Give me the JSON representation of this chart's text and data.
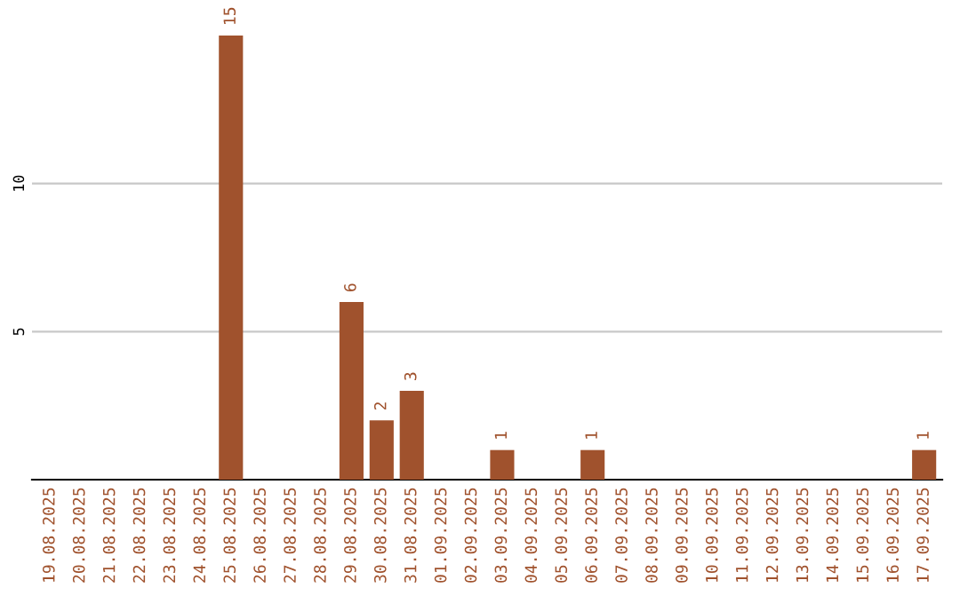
{
  "chart_data": {
    "type": "bar",
    "categories": [
      "19.08.2025",
      "20.08.2025",
      "21.08.2025",
      "22.08.2025",
      "23.08.2025",
      "24.08.2025",
      "25.08.2025",
      "26.08.2025",
      "27.08.2025",
      "28.08.2025",
      "29.08.2025",
      "30.08.2025",
      "31.08.2025",
      "01.09.2025",
      "02.09.2025",
      "03.09.2025",
      "04.09.2025",
      "05.09.2025",
      "06.09.2025",
      "07.09.2025",
      "08.09.2025",
      "09.09.2025",
      "10.09.2025",
      "11.09.2025",
      "12.09.2025",
      "13.09.2025",
      "14.09.2025",
      "15.09.2025",
      "16.09.2025",
      "17.09.2025"
    ],
    "values": [
      0,
      0,
      0,
      0,
      0,
      0,
      15,
      0,
      0,
      0,
      6,
      2,
      3,
      0,
      0,
      1,
      0,
      0,
      1,
      0,
      0,
      0,
      0,
      0,
      0,
      0,
      0,
      0,
      0,
      1
    ],
    "value_labels": [
      null,
      null,
      null,
      null,
      null,
      null,
      "15",
      null,
      null,
      null,
      "6",
      "2",
      "3",
      null,
      null,
      "1",
      null,
      null,
      "1",
      null,
      null,
      null,
      null,
      null,
      null,
      null,
      null,
      null,
      null,
      "1"
    ],
    "color": "#a0522d",
    "ylim": [
      0,
      15
    ],
    "yticks": [
      5,
      10
    ],
    "grid": "y"
  }
}
